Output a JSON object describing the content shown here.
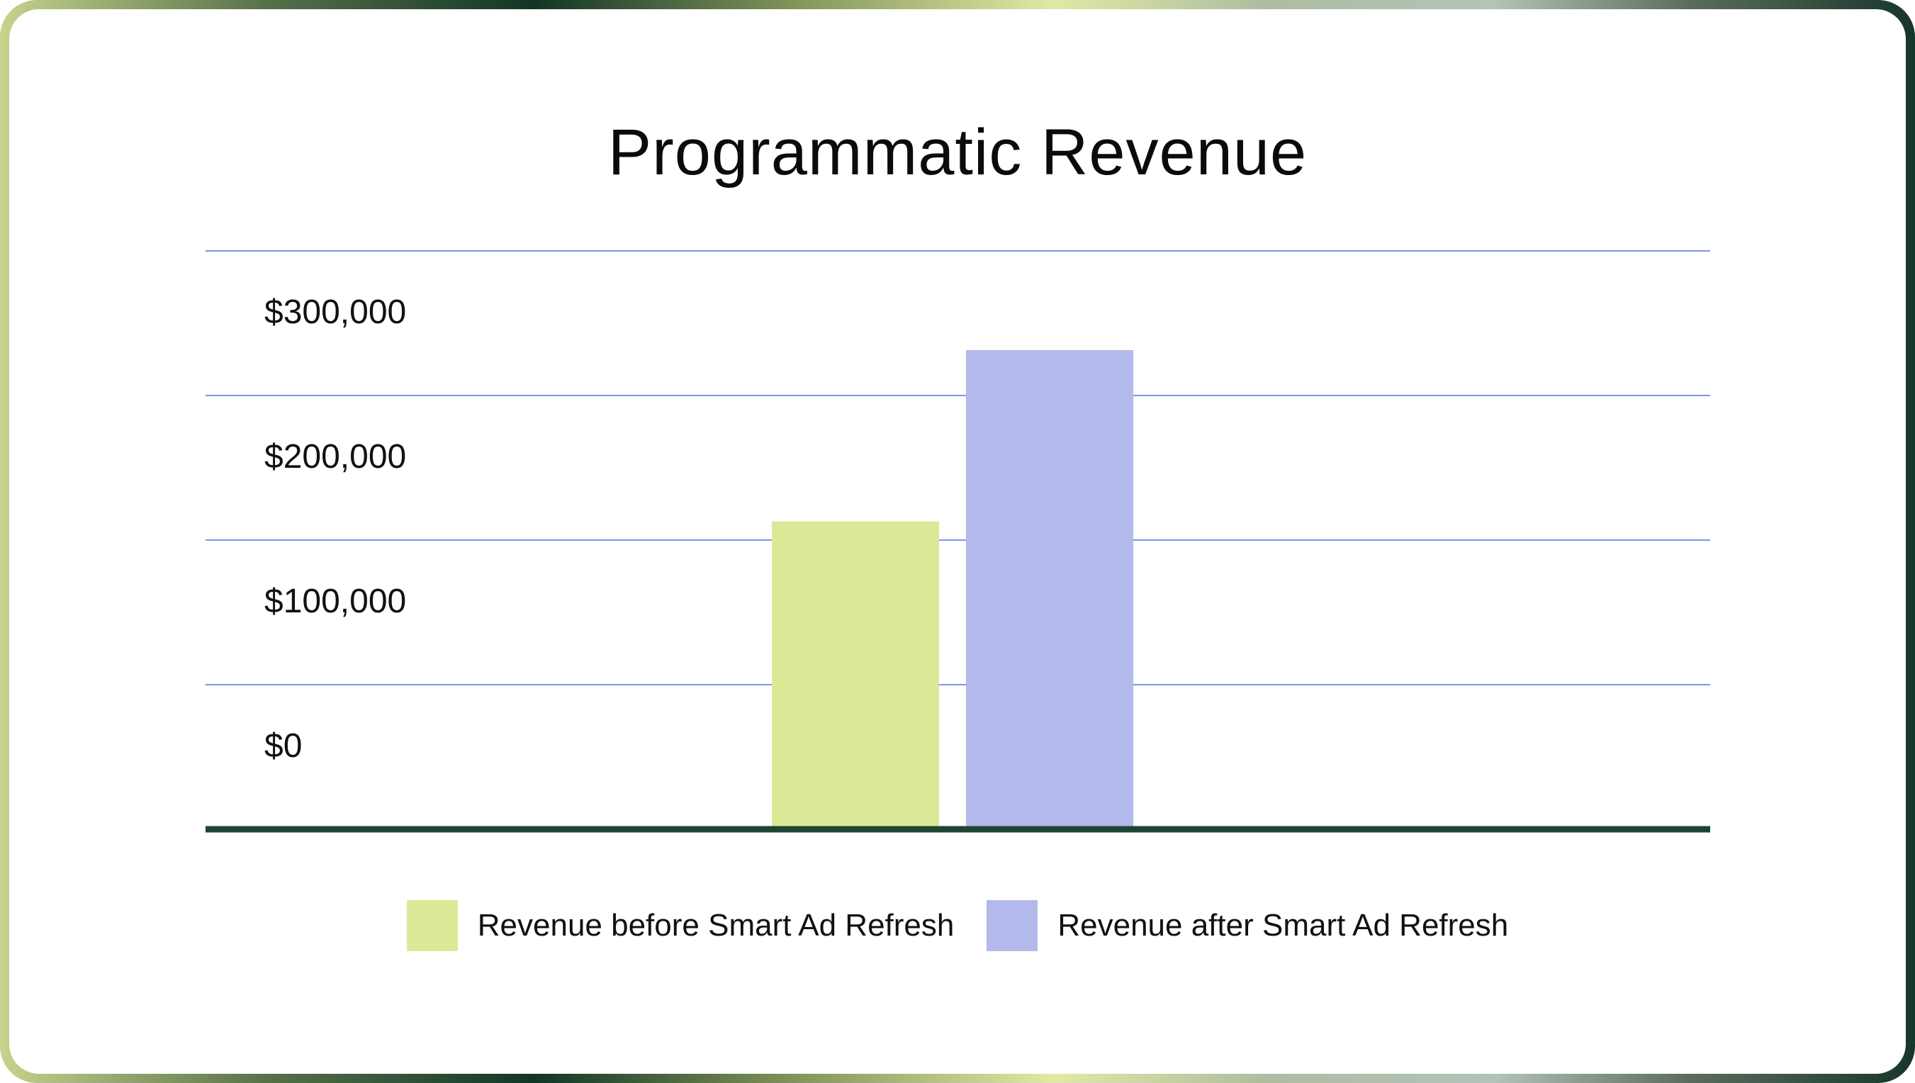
{
  "chart_data": {
    "type": "bar",
    "title": "Programmatic Revenue",
    "xlabel": "",
    "ylabel": "",
    "ylim": [
      0,
      300000
    ],
    "yticks": [
      {
        "value": 0,
        "label": "$0"
      },
      {
        "value": 100000,
        "label": "$100,000"
      },
      {
        "value": 200000,
        "label": "$200,000"
      },
      {
        "value": 300000,
        "label": "$300,000"
      }
    ],
    "categories": [
      ""
    ],
    "series": [
      {
        "name": "Revenue before Smart Ad Refresh",
        "values": [
          212000
        ],
        "color": "#dde897"
      },
      {
        "name": "Revenue after Smart Ad Refresh",
        "values": [
          331000
        ],
        "color": "#b3b9ea"
      }
    ],
    "grid": true,
    "legend_position": "bottom"
  },
  "colors": {
    "gridline": "#7f93e6",
    "baseline": "#1e4534"
  }
}
